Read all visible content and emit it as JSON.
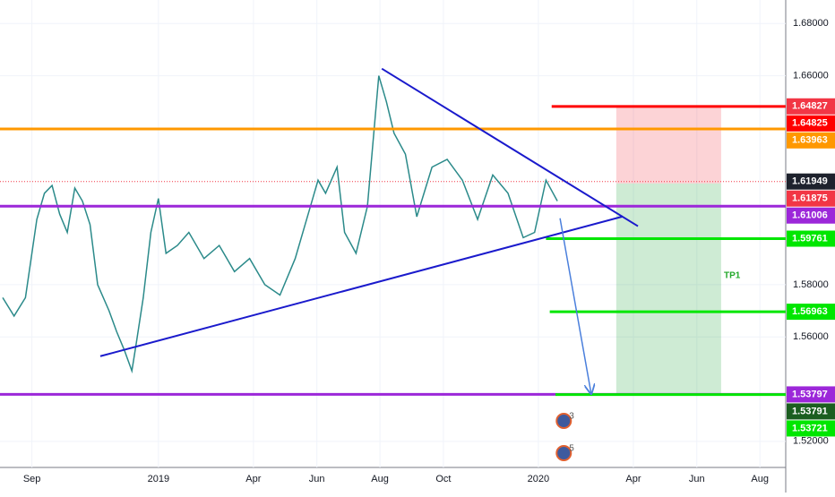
{
  "chart_data": {
    "type": "line",
    "color": "#2b8a8a",
    "x": [
      2018.59,
      2018.62,
      2018.65,
      2018.68,
      2018.7,
      2018.72,
      2018.74,
      2018.76,
      2018.78,
      2018.8,
      2018.82,
      2018.84,
      2018.87,
      2018.89,
      2018.91,
      2018.93,
      2018.94,
      2018.96,
      2018.98,
      2019.0,
      2019.02,
      2019.05,
      2019.08,
      2019.12,
      2019.16,
      2019.2,
      2019.24,
      2019.28,
      2019.32,
      2019.36,
      2019.4,
      2019.42,
      2019.44,
      2019.47,
      2019.49,
      2019.52,
      2019.55,
      2019.58,
      2019.6,
      2019.62,
      2019.65,
      2019.68,
      2019.72,
      2019.76,
      2019.8,
      2019.84,
      2019.88,
      2019.92,
      2019.96,
      2019.99,
      2020.02,
      2020.05
    ],
    "values": [
      1.575,
      1.568,
      1.575,
      1.605,
      1.615,
      1.618,
      1.607,
      1.6,
      1.617,
      1.612,
      1.603,
      1.58,
      1.57,
      1.562,
      1.555,
      1.547,
      1.556,
      1.575,
      1.6,
      1.613,
      1.592,
      1.595,
      1.6,
      1.59,
      1.595,
      1.585,
      1.59,
      1.58,
      1.576,
      1.59,
      1.61,
      1.62,
      1.615,
      1.625,
      1.6,
      1.592,
      1.61,
      1.66,
      1.65,
      1.638,
      1.63,
      1.606,
      1.625,
      1.628,
      1.62,
      1.605,
      1.622,
      1.615,
      1.598,
      1.6,
      1.62,
      1.612
    ],
    "xlim": [
      2018.583,
      2020.651
    ],
    "ylim": [
      1.51,
      1.689
    ],
    "xticks": [
      {
        "value": 2018.667,
        "label": "Sep"
      },
      {
        "value": 2019,
        "label": "2019"
      },
      {
        "value": 2019.25,
        "label": "Apr"
      },
      {
        "value": 2019.417,
        "label": "Jun"
      },
      {
        "value": 2019.583,
        "label": "Aug"
      },
      {
        "value": 2019.75,
        "label": "Oct"
      },
      {
        "value": 2020,
        "label": "2020"
      },
      {
        "value": 2020.25,
        "label": "Apr"
      },
      {
        "value": 2020.417,
        "label": "Jun"
      },
      {
        "value": 2020.583,
        "label": "Aug"
      }
    ],
    "yticks": [
      {
        "value": 1.52,
        "label": "1.52000"
      },
      {
        "value": 1.56,
        "label": "1.56000"
      },
      {
        "value": 1.58,
        "label": "1.58000"
      },
      {
        "value": 1.66,
        "label": "1.66000"
      },
      {
        "value": 1.68,
        "label": "1.68000"
      }
    ],
    "levels": [
      {
        "value": 1.64825,
        "color": "#ff0000",
        "from": 2020.035
      },
      {
        "value": 1.63963,
        "color": "#ff9800"
      },
      {
        "value": 1.61006,
        "color": "#9c27d9"
      },
      {
        "value": 1.59761,
        "color": "#00e600",
        "from": 2020.02
      },
      {
        "value": 1.56963,
        "color": "#00e600",
        "from": 2020.03
      },
      {
        "value": 1.53797,
        "color": "#9c27d9"
      },
      {
        "value": 1.53791,
        "color": "#00e600",
        "from": 2020.045
      }
    ],
    "price_labels": [
      {
        "value": 1.64825,
        "color": "#ff0000"
      },
      {
        "value": 1.64827,
        "color": "#f23645"
      },
      {
        "value": 1.63963,
        "color": "#ff9800"
      },
      {
        "value": 1.61949,
        "color": "#1e222d"
      },
      {
        "value": 1.61875,
        "color": "#f23645"
      },
      {
        "value": 1.61006,
        "color": "#9c27d9"
      },
      {
        "value": 1.59761,
        "color": "#00e600"
      },
      {
        "value": 1.56963,
        "color": "#00e600"
      },
      {
        "value": 1.53797,
        "color": "#9c27d9"
      },
      {
        "value": 1.53791,
        "color": "#1b5e20"
      },
      {
        "value": 1.53721,
        "color": "#00e600"
      }
    ],
    "current_price": 1.61949,
    "position": {
      "entry": 1.61875,
      "stop": 1.64825,
      "target": 1.53797,
      "from": 2020.205,
      "to": 2020.481
    },
    "trendlines": [
      {
        "x": [
          2019.588,
          2020.262
        ],
        "y": [
          1.6627,
          1.6024
        ],
        "color": "#1a1acc"
      },
      {
        "x": [
          2018.847,
          2020.222
        ],
        "y": [
          1.5526,
          1.6061
        ],
        "color": "#1a1acc"
      },
      {
        "x": [
          2020.057,
          2020.139
        ],
        "y": [
          1.6054,
          1.5382
        ],
        "color": "#4a7fdc",
        "arrow": true
      }
    ],
    "annotations": [
      {
        "text": "TP1",
        "x": 2020.51,
        "y": 1.5835
      }
    ],
    "events": [
      {
        "label": "3",
        "x": 2020.048,
        "row": 0
      },
      {
        "label": "5",
        "x": 2020.048,
        "row": 1
      }
    ]
  }
}
